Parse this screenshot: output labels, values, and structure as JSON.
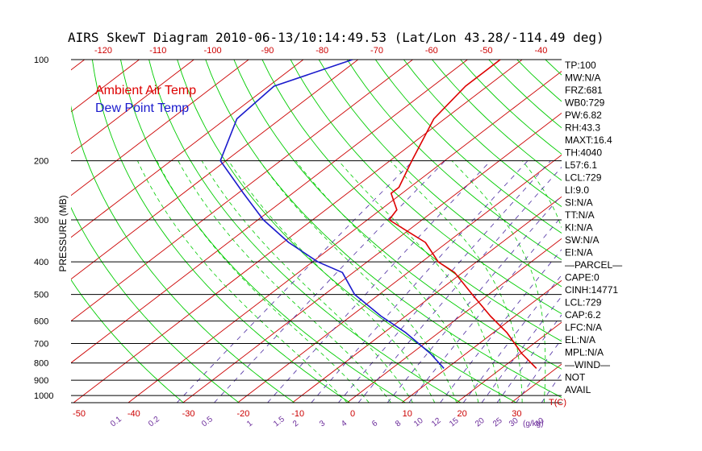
{
  "chart_data": {
    "type": "line",
    "title": "AIRS SkewT Diagram 2010-06-13/10:14:49.53 (Lat/Lon 43.28/-114.49 deg)",
    "ylabel": "PRESSURE (MB)",
    "pressure_ticks": [
      100,
      200,
      300,
      400,
      500,
      600,
      700,
      800,
      900,
      1000
    ],
    "top_temp_ticks": [
      -120,
      -110,
      -100,
      -90,
      -80,
      -70,
      -60,
      -50,
      -40
    ],
    "bottom_temp_ticks": [
      -50,
      -40,
      -30,
      -20,
      -10,
      0,
      10,
      20,
      30
    ],
    "bottom_temp_unit": "T(C)",
    "mixing_ratio_labels": [
      "0.1",
      "0.2",
      "0.5",
      "1",
      "1.5",
      "2",
      "3",
      "4",
      "6",
      "8",
      "10",
      "12",
      "15",
      "20",
      "25",
      "30",
      "40"
    ],
    "mixing_ratio_unit": "(g/kg)",
    "series": [
      {
        "name": "Ambient Air Temp",
        "color": "#dd0000",
        "pressure": [
          830,
          750,
          650,
          580,
          500,
          430,
          400,
          350,
          300,
          280,
          250,
          240,
          200,
          150,
          120,
          100
        ],
        "temp": [
          16.4,
          10.2,
          2.5,
          -4.5,
          -13,
          -21.5,
          -27,
          -34,
          -46,
          -47,
          -52,
          -52,
          -56,
          -62,
          -64,
          -64
        ]
      },
      {
        "name": "Dew Point Temp",
        "color": "#1a1acc",
        "pressure": [
          830,
          750,
          650,
          580,
          500,
          430,
          400,
          350,
          300,
          250,
          200,
          150,
          120,
          100
        ],
        "temp": [
          -0.5,
          -6.5,
          -16,
          -24.5,
          -34.5,
          -42,
          -49,
          -59,
          -69,
          -79,
          -91,
          -98,
          -99,
          -91
        ]
      }
    ],
    "indices": [
      "TP:100",
      "MW:N/A",
      "FRZ:681",
      "WB0:729",
      "PW:6.82",
      "RH:43.3",
      "MAXT:16.4",
      "TH:4040",
      "L57:6.1",
      "LCL:729",
      "LI:9.0",
      "SI:N/A",
      "TT:N/A",
      "KI:N/A",
      "SW:N/A",
      "EI:N/A",
      "—PARCEL—",
      "CAPE:0",
      "CINH:14771",
      "LCL:729",
      "CAP:6.2",
      "LFC:N/A",
      "EL:N/A",
      "MPL:N/A",
      "—WIND—",
      "NOT",
      "AVAIL"
    ],
    "colors": {
      "isotherm": "#cc0000",
      "dry_adiabat": "#00cc00",
      "moist_adiabat": "#00cc00",
      "mixing_ratio": "#4a2aa0",
      "isobar": "#000000"
    }
  }
}
